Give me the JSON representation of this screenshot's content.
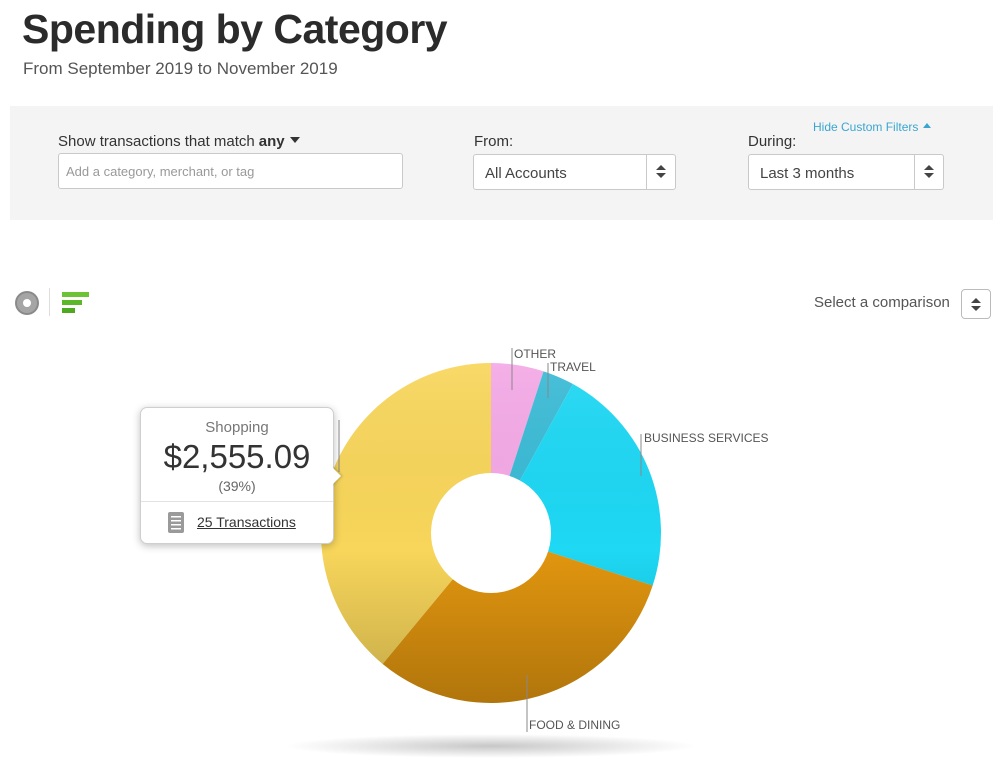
{
  "header": {
    "title": "Spending by Category",
    "subtitle": "From September 2019 to November 2019"
  },
  "filters": {
    "match_label": "Show transactions that match",
    "match_value": "any",
    "search_placeholder": "Add a category, merchant, or tag",
    "search_value": "",
    "from_label": "From:",
    "from_value": "All Accounts",
    "during_label": "During:",
    "during_value": "Last 3 months",
    "hide_filters_link": "Hide Custom Filters"
  },
  "view_toggle": {
    "donut_icon": "donut-chart-icon",
    "bar_icon": "bar-chart-icon"
  },
  "comparison": {
    "label": "Select a comparison"
  },
  "tooltip": {
    "category": "Shopping",
    "amount": "$2,555.09",
    "percent": "(39%)",
    "transactions_link": "25  Transactions",
    "icon": "document-icon"
  },
  "chart_data": {
    "type": "pie",
    "style": "donut",
    "slices": [
      {
        "label": "OTHER",
        "share": 0.05,
        "color": "#f4a9e6"
      },
      {
        "label": "TRAVEL",
        "share": 0.03,
        "color": "#3bbbd6"
      },
      {
        "label": "BUSINESS SERVICES",
        "share": 0.22,
        "color": "#1ed8f4"
      },
      {
        "label": "FOOD & DINING",
        "share": 0.31,
        "color": "#e2960f"
      },
      {
        "label": "",
        "share": 0.39,
        "color": "#f8d65b"
      }
    ]
  }
}
